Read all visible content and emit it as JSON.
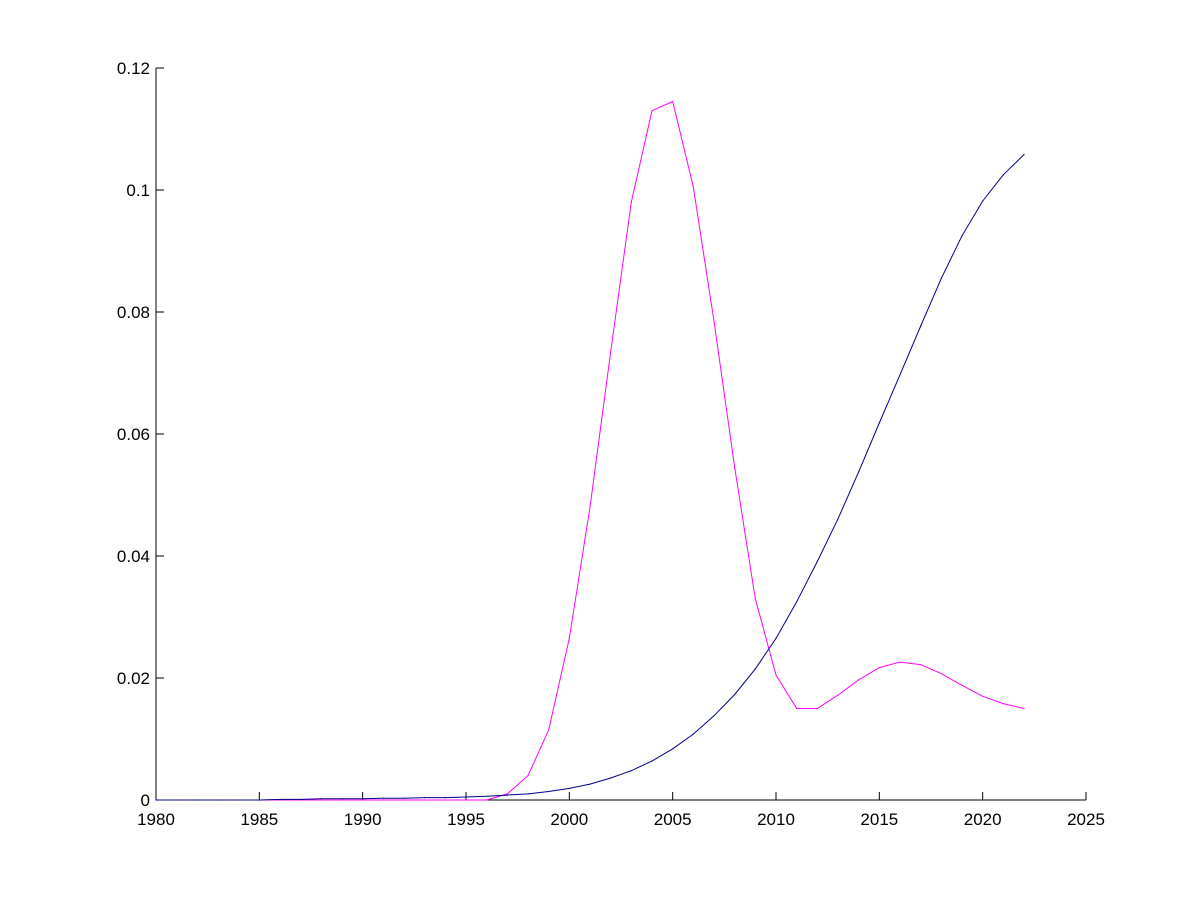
{
  "chart_data": {
    "type": "line",
    "title": "",
    "xlabel": "",
    "ylabel": "",
    "xlim": [
      1980,
      2025
    ],
    "ylim": [
      0,
      0.12
    ],
    "grid": false,
    "xticks": [
      1980,
      1985,
      1990,
      1995,
      2000,
      2005,
      2010,
      2015,
      2020,
      2025
    ],
    "xtick_labels": [
      "1980",
      "1985",
      "1990",
      "1995",
      "2000",
      "2005",
      "2010",
      "2015",
      "2020",
      "2025"
    ],
    "yticks": [
      0,
      0.02,
      0.04,
      0.06,
      0.08,
      0.1,
      0.12
    ],
    "ytick_labels": [
      "0",
      "0.02",
      "0.04",
      "0.06",
      "0.08",
      "0.1",
      "0.12"
    ],
    "x": [
      1980,
      1981,
      1982,
      1983,
      1984,
      1985,
      1986,
      1987,
      1988,
      1989,
      1990,
      1991,
      1992,
      1993,
      1994,
      1995,
      1996,
      1997,
      1998,
      1999,
      2000,
      2001,
      2002,
      2003,
      2004,
      2005,
      2006,
      2007,
      2008,
      2009,
      2010,
      2011,
      2012,
      2013,
      2014,
      2015,
      2016,
      2017,
      2018,
      2019,
      2020,
      2021,
      2022
    ],
    "series": [
      {
        "color": "#ff00ff",
        "values": [
          0,
          0,
          0,
          0,
          0,
          0,
          0,
          0,
          0,
          0,
          0,
          0,
          0,
          0,
          0,
          0,
          0,
          0.001,
          0.004,
          0.0115,
          0.0265,
          0.048,
          0.0735,
          0.098,
          0.113,
          0.1145,
          0.1005,
          0.0785,
          0.0545,
          0.033,
          0.0205,
          0.015,
          0.015,
          0.0172,
          0.0197,
          0.0217,
          0.0226,
          0.0222,
          0.0207,
          0.0188,
          0.017,
          0.0158,
          0.015
        ]
      },
      {
        "color": "#00008b",
        "values": [
          0,
          0,
          0,
          0,
          0,
          0,
          0.0001,
          0.0001,
          0.0002,
          0.0002,
          0.0002,
          0.0003,
          0.0003,
          0.0004,
          0.0004,
          0.0005,
          0.0006,
          0.0008,
          0.001,
          0.0014,
          0.0019,
          0.0026,
          0.0036,
          0.0048,
          0.0064,
          0.0084,
          0.0108,
          0.0138,
          0.0173,
          0.0215,
          0.0265,
          0.0325,
          0.0391,
          0.0461,
          0.0538,
          0.0618,
          0.0697,
          0.0777,
          0.0855,
          0.0925,
          0.0982,
          0.1025,
          0.1058
        ]
      }
    ]
  }
}
